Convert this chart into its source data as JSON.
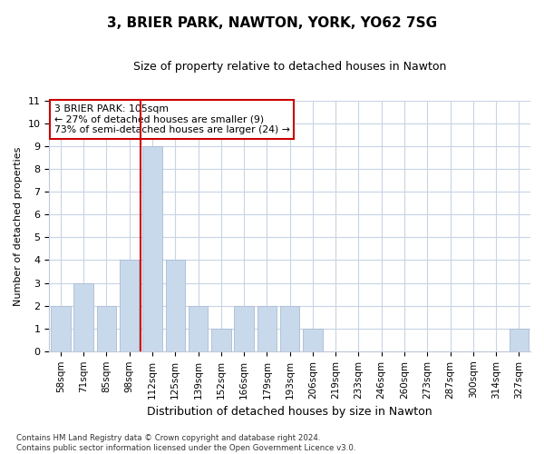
{
  "title1": "3, BRIER PARK, NAWTON, YORK, YO62 7SG",
  "title2": "Size of property relative to detached houses in Nawton",
  "xlabel": "Distribution of detached houses by size in Nawton",
  "ylabel": "Number of detached properties",
  "categories": [
    "58sqm",
    "71sqm",
    "85sqm",
    "98sqm",
    "112sqm",
    "125sqm",
    "139sqm",
    "152sqm",
    "166sqm",
    "179sqm",
    "193sqm",
    "206sqm",
    "219sqm",
    "233sqm",
    "246sqm",
    "260sqm",
    "273sqm",
    "287sqm",
    "300sqm",
    "314sqm",
    "327sqm"
  ],
  "values": [
    2,
    3,
    2,
    4,
    9,
    4,
    2,
    1,
    2,
    2,
    2,
    1,
    0,
    0,
    0,
    0,
    0,
    0,
    0,
    0,
    1
  ],
  "bar_color": "#c9d9ec",
  "bar_edge_color": "#a8bcd4",
  "grid_color": "#c8d4e4",
  "vline_x": 3.5,
  "vline_color": "#cc0000",
  "annotation_box_line1": "3 BRIER PARK: 105sqm",
  "annotation_box_line2": "← 27% of detached houses are smaller (9)",
  "annotation_box_line3": "73% of semi-detached houses are larger (24) →",
  "annotation_box_color": "#cc0000",
  "ylim": [
    0,
    11
  ],
  "yticks": [
    0,
    1,
    2,
    3,
    4,
    5,
    6,
    7,
    8,
    9,
    10,
    11
  ],
  "footnote": "Contains HM Land Registry data © Crown copyright and database right 2024.\nContains public sector information licensed under the Open Government Licence v3.0.",
  "bg_color": "#ffffff",
  "plot_bg_color": "#ffffff",
  "title1_fontsize": 11,
  "title2_fontsize": 9,
  "xlabel_fontsize": 9,
  "ylabel_fontsize": 8,
  "tick_fontsize": 8,
  "xtick_fontsize": 7.5
}
